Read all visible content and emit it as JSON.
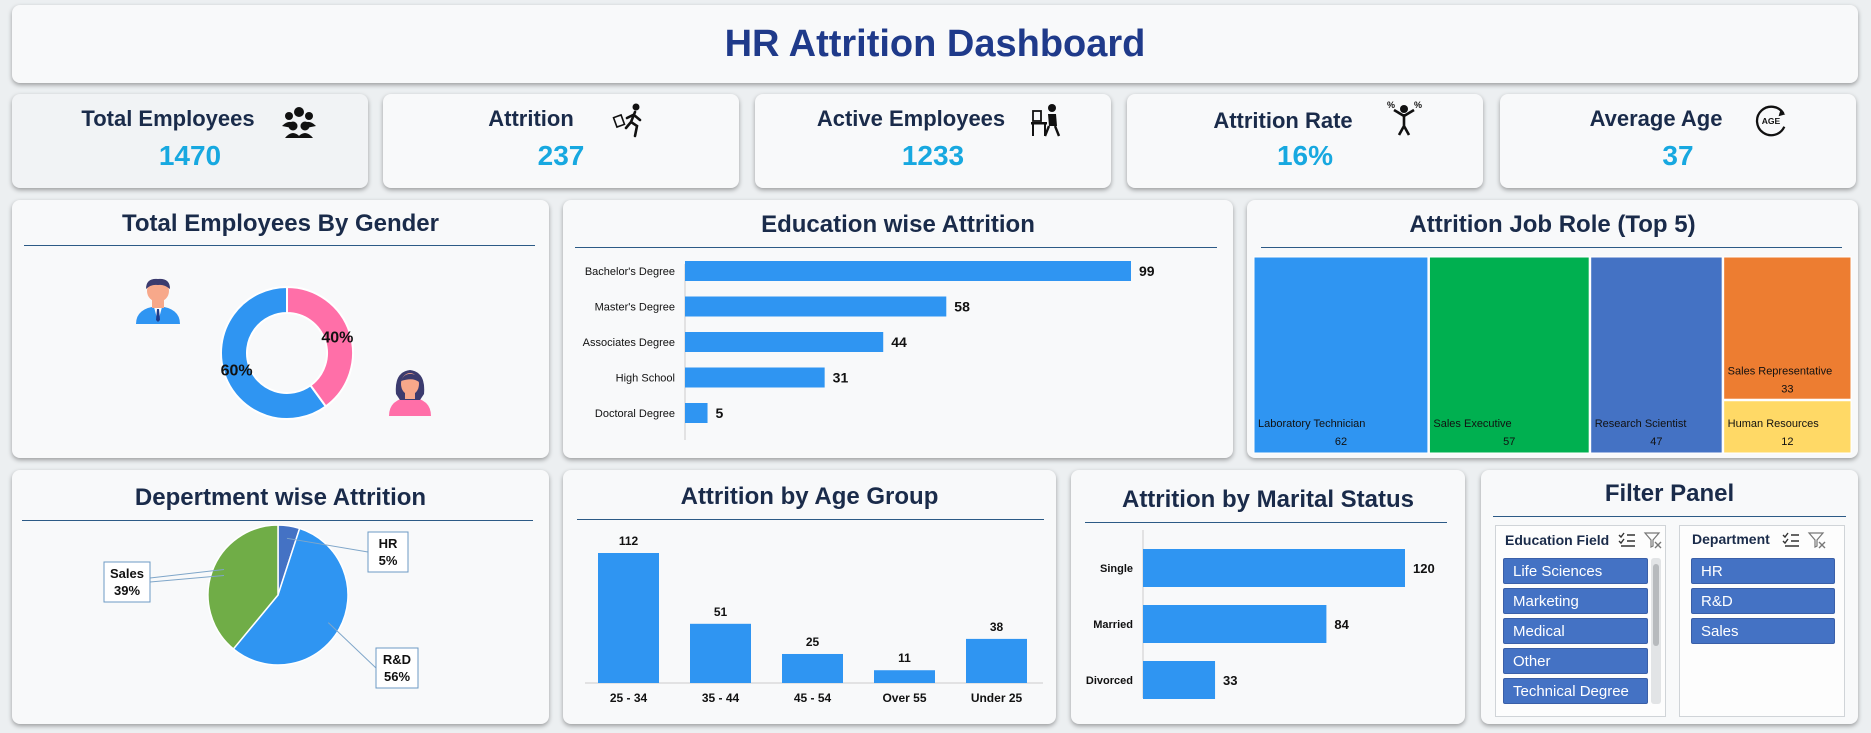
{
  "dashboard": {
    "title": "HR Attrition Dashboard"
  },
  "kpis": [
    {
      "label": "Total Employees",
      "value": "1470",
      "icon": "people-group-icon"
    },
    {
      "label": "Attrition",
      "value": "237",
      "icon": "person-leaving-icon"
    },
    {
      "label": "Active Employees",
      "value": "1233",
      "icon": "person-at-desk-icon"
    },
    {
      "label": "Attrition Rate",
      "value": "16%",
      "icon": "percent-person-icon"
    },
    {
      "label": "Average Age",
      "value": "37",
      "icon": "age-cycle-icon"
    }
  ],
  "panels": {
    "gender": "Total Employees By Gender",
    "education": "Education wise Attrition",
    "jobrole": "Attrition Job Role (Top 5)",
    "department": "Depertment wise Attrition",
    "age": "Attrition by Age Group",
    "marital": "Attrition by Marital Status",
    "filter": "Filter Panel"
  },
  "chart_data": [
    {
      "id": "gender",
      "type": "pie",
      "categories": [
        "Male",
        "Female"
      ],
      "values": [
        60,
        40
      ],
      "labels": [
        "60%",
        "40%"
      ],
      "colors": [
        "#2f95f2",
        "#ff6fa8"
      ]
    },
    {
      "id": "education",
      "type": "bar",
      "categories": [
        "Bachelor's Degree",
        "Master's Degree",
        "Associates Degree",
        "High School",
        "Doctoral Degree"
      ],
      "values": [
        99,
        58,
        44,
        31,
        5
      ],
      "color": "#2f95f2"
    },
    {
      "id": "jobrole",
      "type": "heatmap",
      "categories": [
        "Laboratory Technician",
        "Sales Executive",
        "Research Scientist",
        "Sales Representative",
        "Human Resources"
      ],
      "values": [
        62,
        57,
        47,
        33,
        12
      ],
      "colors": [
        "#2f95f2",
        "#00b050",
        "#4472c4",
        "#ed7d31",
        "#ffd966"
      ]
    },
    {
      "id": "department",
      "type": "pie",
      "categories": [
        "HR",
        "R&D",
        "Sales"
      ],
      "values": [
        5,
        56,
        39
      ],
      "labels": [
        "5%",
        "56%",
        "39%"
      ],
      "colors": [
        "#4472c4",
        "#2f95f2",
        "#70ad47"
      ]
    },
    {
      "id": "age",
      "type": "bar",
      "categories": [
        "25 - 34",
        "35 - 44",
        "45 - 54",
        "Over 55",
        "Under 25"
      ],
      "values": [
        112,
        51,
        25,
        11,
        38
      ],
      "color": "#2f95f2"
    },
    {
      "id": "marital",
      "type": "bar",
      "categories": [
        "Single",
        "Married",
        "Divorced"
      ],
      "values": [
        120,
        84,
        33
      ],
      "color": "#2f95f2"
    }
  ],
  "filters": {
    "education_field": {
      "label": "Education Field",
      "items": [
        "Life Sciences",
        "Marketing",
        "Medical",
        "Other",
        "Technical Degree"
      ]
    },
    "department": {
      "label": "Department",
      "items": [
        "HR",
        "R&D",
        "Sales"
      ]
    }
  },
  "colors": {
    "accent": "#17a8e0",
    "title": "#1f3a8a",
    "bar": "#2f95f2",
    "slicer": "#4472c4"
  }
}
